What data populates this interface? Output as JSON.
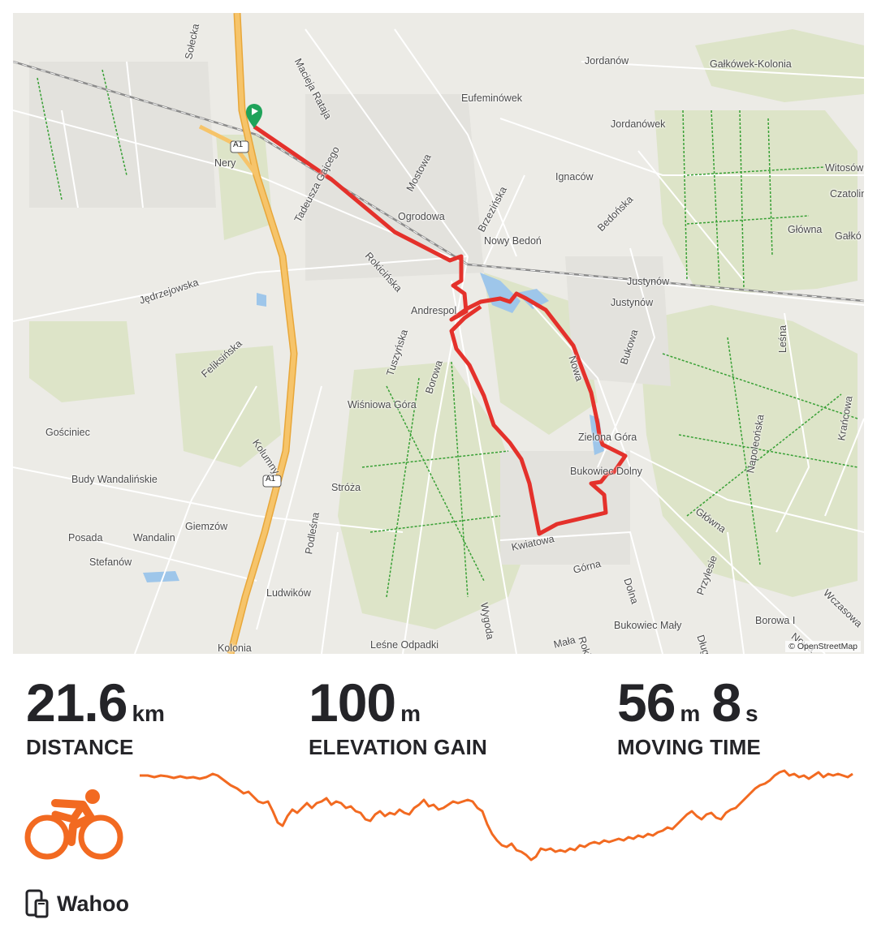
{
  "map": {
    "attribution": "© OpenStreetMap",
    "labels": [
      {
        "text": "Jordanów"
      },
      {
        "text": "Gałkówek-Kolonia"
      },
      {
        "text": "Eufeminówek"
      },
      {
        "text": "Jordanówek"
      },
      {
        "text": "Ignaców"
      },
      {
        "text": "Witosów"
      },
      {
        "text": "Czatolin"
      },
      {
        "text": "Główna"
      },
      {
        "text": "Gałkó"
      },
      {
        "text": "Ogrodowa"
      },
      {
        "text": "Nowy Bedoń"
      },
      {
        "text": "Bedońska"
      },
      {
        "text": "Brzezińska"
      },
      {
        "text": "Mostowa"
      },
      {
        "text": "Tadeusza Gajcego"
      },
      {
        "text": "Macieja Rataja"
      },
      {
        "text": "Nery"
      },
      {
        "text": "Sołecka"
      },
      {
        "text": "Rokicińska"
      },
      {
        "text": "Jędrzejowska"
      },
      {
        "text": "Andrespol"
      },
      {
        "text": "Justynów"
      },
      {
        "text": "Justynów"
      },
      {
        "text": "Bukowa"
      },
      {
        "text": "Nowa"
      },
      {
        "text": "Leśna"
      },
      {
        "text": "Tuszyńska"
      },
      {
        "text": "Borowa"
      },
      {
        "text": "Feliksińska"
      },
      {
        "text": "Wiśniowa Góra"
      },
      {
        "text": "Zielona Góra"
      },
      {
        "text": "Bukowiec Dolny"
      },
      {
        "text": "Napoleońska"
      },
      {
        "text": "Krańcowa"
      },
      {
        "text": "Gościniec"
      },
      {
        "text": "Budy Wandalińskie"
      },
      {
        "text": "Kolumny"
      },
      {
        "text": "Stróża"
      },
      {
        "text": "Główna"
      },
      {
        "text": "Giemzów"
      },
      {
        "text": "Posada"
      },
      {
        "text": "Wandalin"
      },
      {
        "text": "Stefanów"
      },
      {
        "text": "Podleśna"
      },
      {
        "text": "Kwiatowa"
      },
      {
        "text": "Górna"
      },
      {
        "text": "Dolna"
      },
      {
        "text": "Przylesie"
      },
      {
        "text": "Wczasowa"
      },
      {
        "text": "Ludwików"
      },
      {
        "text": "Wygoda"
      },
      {
        "text": "Bukowiec Mały"
      },
      {
        "text": "Długa"
      },
      {
        "text": "Borowa I"
      },
      {
        "text": "Nowa"
      },
      {
        "text": "Leśne Odpadki"
      },
      {
        "text": "Mała"
      },
      {
        "text": "Rokicińska"
      },
      {
        "text": "Kolonia"
      },
      {
        "text": "A1"
      },
      {
        "text": "A1"
      }
    ]
  },
  "stats": [
    {
      "value": "21.6",
      "unit": "km",
      "label": "DISTANCE"
    },
    {
      "value": "100",
      "unit": "m",
      "label": "ELEVATION GAIN"
    },
    {
      "value": "56",
      "unit": "m",
      "value2": "8",
      "unit2": "s",
      "label": "MOVING TIME"
    }
  ],
  "activity": {
    "icon": "cycling-icon",
    "color": "#f26a21"
  },
  "device": {
    "icon": "device-sync-icon",
    "label": "Wahoo"
  },
  "colors": {
    "route": "#e4312b",
    "elevation": "#f26a21",
    "highway": "#f2b64c",
    "start_marker": "#1fa35a"
  }
}
